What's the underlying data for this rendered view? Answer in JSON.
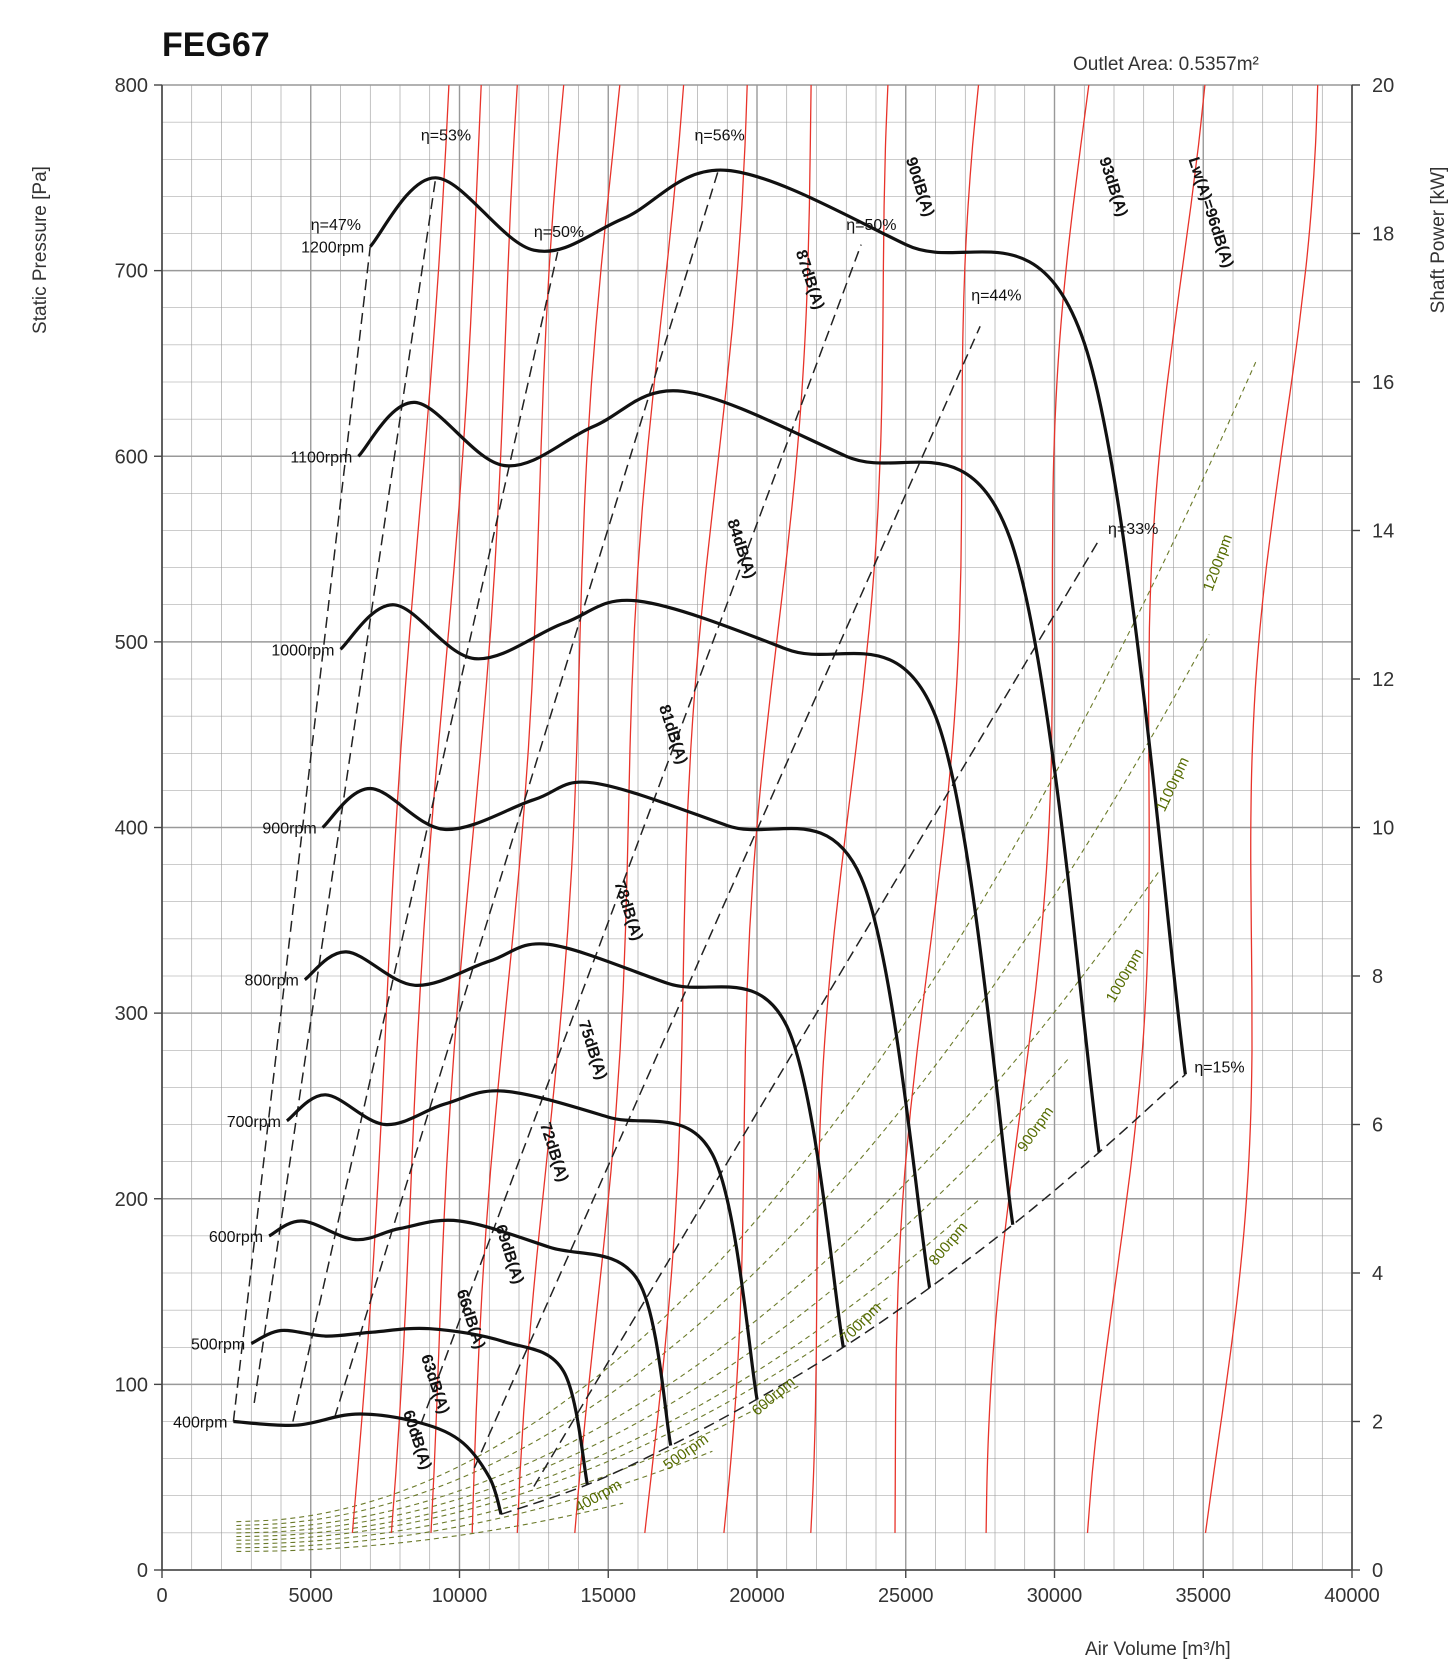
{
  "chart_data": {
    "type": "line",
    "title": "FEG67",
    "outlet_area": "Outlet Area:  0.5357m²",
    "xlabel": "Air Volume [m³/h]",
    "ylabel": "Static Pressure [Pa]",
    "y2label": "Shaft Power [kW]",
    "xlim": [
      0,
      40000
    ],
    "ylim": [
      0,
      800
    ],
    "y2lim": [
      0,
      20
    ],
    "x_ticks": [
      "0",
      "5000",
      "10000",
      "15000",
      "20000",
      "25000",
      "30000",
      "35000",
      "40000"
    ],
    "y_ticks": [
      "0",
      "100",
      "200",
      "300",
      "400",
      "500",
      "600",
      "700",
      "800"
    ],
    "y2_ticks": [
      "0",
      "2",
      "4",
      "6",
      "8",
      "10",
      "12",
      "14",
      "16",
      "18",
      "20"
    ],
    "grid": true,
    "colors": {
      "pressure": "#111111",
      "noise": "#e8332a",
      "power": "#6b7a2a",
      "efficiency": "#222222",
      "grid": "#999999"
    },
    "pressure_series": [
      {
        "name": "400rpm",
        "points": [
          [
            2400,
            80
          ],
          [
            4500,
            78
          ],
          [
            6500,
            84
          ],
          [
            8500,
            80
          ],
          [
            10000,
            70
          ],
          [
            11000,
            50
          ],
          [
            11400,
            30
          ]
        ]
      },
      {
        "name": "500rpm",
        "points": [
          [
            3000,
            122
          ],
          [
            4000,
            129
          ],
          [
            5500,
            126
          ],
          [
            7000,
            128
          ],
          [
            9000,
            130
          ],
          [
            11500,
            123
          ],
          [
            13500,
            107
          ],
          [
            14300,
            46
          ]
        ]
      },
      {
        "name": "600rpm",
        "points": [
          [
            3600,
            180
          ],
          [
            4700,
            188
          ],
          [
            6500,
            178
          ],
          [
            8000,
            184
          ],
          [
            10000,
            188
          ],
          [
            13000,
            174
          ],
          [
            16000,
            156
          ],
          [
            17100,
            67
          ]
        ]
      },
      {
        "name": "700rpm",
        "points": [
          [
            4200,
            242
          ],
          [
            5500,
            256
          ],
          [
            7500,
            240
          ],
          [
            9500,
            251
          ],
          [
            11500,
            258
          ],
          [
            15000,
            244
          ],
          [
            18500,
            224
          ],
          [
            20000,
            92
          ]
        ]
      },
      {
        "name": "800rpm",
        "points": [
          [
            4800,
            318
          ],
          [
            6200,
            333
          ],
          [
            8500,
            315
          ],
          [
            11000,
            328
          ],
          [
            13000,
            337
          ],
          [
            17000,
            316
          ],
          [
            21000,
            293
          ],
          [
            22900,
            120
          ]
        ]
      },
      {
        "name": "900rpm",
        "points": [
          [
            5400,
            400
          ],
          [
            7000,
            421
          ],
          [
            9500,
            399
          ],
          [
            12500,
            415
          ],
          [
            14500,
            424
          ],
          [
            19000,
            401
          ],
          [
            23500,
            373
          ],
          [
            25800,
            152
          ]
        ]
      },
      {
        "name": "1000rpm",
        "points": [
          [
            6000,
            496
          ],
          [
            7800,
            520
          ],
          [
            10500,
            491
          ],
          [
            13500,
            510
          ],
          [
            16000,
            522
          ],
          [
            21000,
            496
          ],
          [
            26000,
            460
          ],
          [
            28600,
            186
          ]
        ]
      },
      {
        "name": "1100rpm",
        "points": [
          [
            6600,
            600
          ],
          [
            8500,
            629
          ],
          [
            11500,
            595
          ],
          [
            14500,
            616
          ],
          [
            17500,
            635
          ],
          [
            23000,
            600
          ],
          [
            28500,
            556
          ],
          [
            31500,
            225
          ]
        ]
      },
      {
        "name": "1200rpm",
        "points": [
          [
            7000,
            713
          ],
          [
            9200,
            750
          ],
          [
            12500,
            711
          ],
          [
            15500,
            728
          ],
          [
            19000,
            754
          ],
          [
            25000,
            714
          ],
          [
            31000,
            661
          ],
          [
            34400,
            267
          ]
        ]
      }
    ],
    "pressure_labels": [
      "400rpm",
      "500rpm",
      "600rpm",
      "700rpm",
      "800rpm",
      "900rpm",
      "1000rpm",
      "1100rpm",
      "1200rpm"
    ],
    "efficiency_labels": [
      "η=47%",
      "η=53%",
      "η=50%",
      "η=56%",
      "η=50%",
      "η=44%",
      "η=33%",
      "η=15%"
    ],
    "noise_labels": [
      "60dB(A)",
      "63dB(A)",
      "66dB(A)",
      "69dB(A)",
      "72dB(A)",
      "75dB(A)",
      "78dB(A)",
      "81dB(A)",
      "84dB(A)",
      "87dB(A)",
      "90dB(A)",
      "93dB(A)",
      "Lw(A)=96dB(A)"
    ],
    "power_labels": [
      "400rpm",
      "500rpm",
      "600rpm",
      "700rpm",
      "800rpm",
      "900rpm",
      "1000rpm",
      "1100rpm",
      "1200rpm"
    ]
  }
}
